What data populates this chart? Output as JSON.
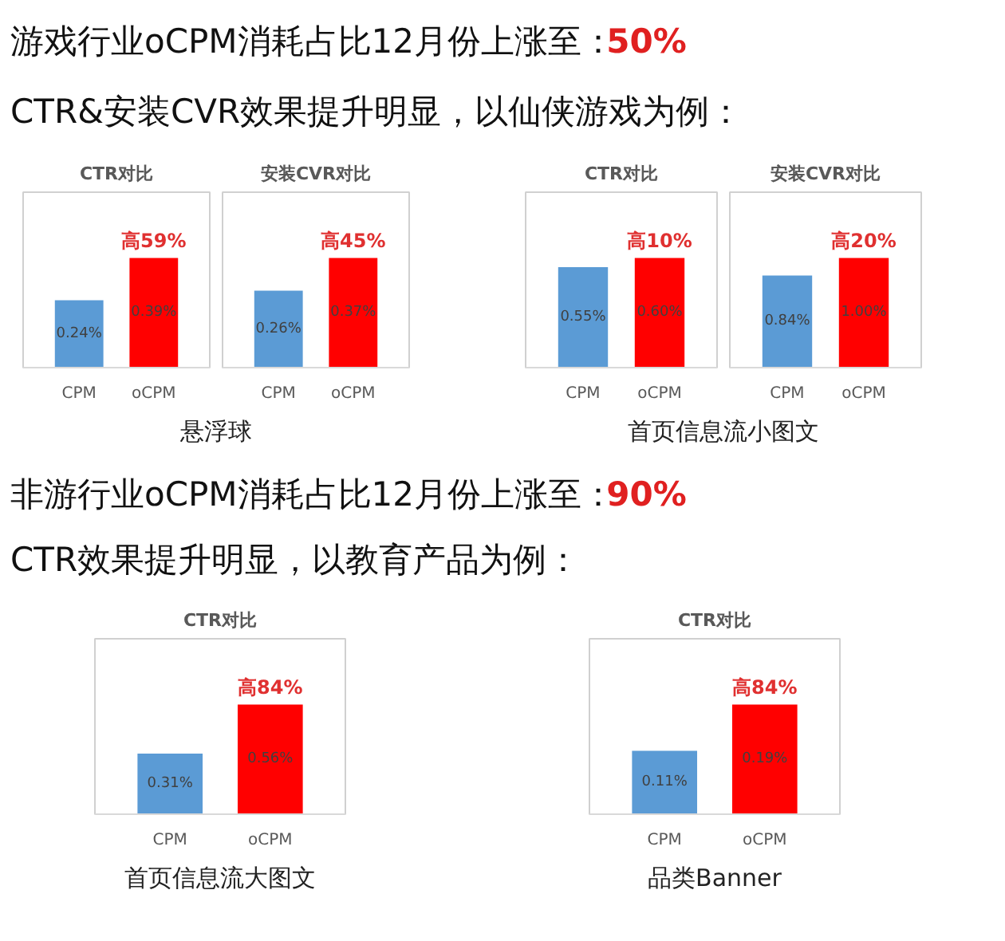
{
  "chart_data": [
    {
      "type": "other",
      "title": "游戏行业oCPM消耗占比12月份上涨至：",
      "annotations": [
        "50%"
      ],
      "subtitle": "CTR&安装CVR效果提升明显，以仙侠游戏为例："
    },
    {
      "type": "bar",
      "title": "CTR对比",
      "categories": [
        "CPM",
        "oCPM"
      ],
      "values": [
        0.24,
        0.39
      ],
      "value_labels": [
        "0.24%",
        "0.39%"
      ],
      "colors": [
        "#5b9bd5",
        "#ff0000"
      ],
      "annotations": [
        "高59%"
      ]
    },
    {
      "type": "bar",
      "title": "安装CVR对比",
      "categories": [
        "CPM",
        "oCPM"
      ],
      "values": [
        0.26,
        0.37
      ],
      "value_labels": [
        "0.26%",
        "0.37%"
      ],
      "colors": [
        "#5b9bd5",
        "#ff0000"
      ],
      "annotations": [
        "高45%"
      ]
    },
    {
      "type": "bar",
      "title": "CTR对比",
      "categories": [
        "CPM",
        "oCPM"
      ],
      "values": [
        0.55,
        0.6
      ],
      "value_labels": [
        "0.55%",
        "0.60%"
      ],
      "colors": [
        "#5b9bd5",
        "#ff0000"
      ],
      "annotations": [
        "高10%"
      ]
    },
    {
      "type": "bar",
      "title": "安装CVR对比",
      "categories": [
        "CPM",
        "oCPM"
      ],
      "values": [
        0.84,
        1.0
      ],
      "value_labels": [
        "0.84%",
        "1.00%"
      ],
      "colors": [
        "#5b9bd5",
        "#ff0000"
      ],
      "annotations": [
        "高20%"
      ]
    },
    {
      "type": "other",
      "title": "悬浮球"
    },
    {
      "type": "other",
      "title": "首页信息流小图文"
    },
    {
      "type": "other",
      "title": "非游行业oCPM消耗占比12月份上涨至：",
      "annotations": [
        "90%"
      ],
      "subtitle": "CTR效果提升明显，以教育产品为例："
    },
    {
      "type": "bar",
      "title": "CTR对比",
      "categories": [
        "CPM",
        "oCPM"
      ],
      "values": [
        0.31,
        0.56
      ],
      "value_labels": [
        "0.31%",
        "0.56%"
      ],
      "colors": [
        "#5b9bd5",
        "#ff0000"
      ],
      "annotations": [
        "高84%"
      ]
    },
    {
      "type": "bar",
      "title": "CTR对比",
      "categories": [
        "CPM",
        "oCPM"
      ],
      "values": [
        0.11,
        0.19
      ],
      "value_labels": [
        "0.11%",
        "0.19%"
      ],
      "colors": [
        "#5b9bd5",
        "#ff0000"
      ],
      "annotations": [
        "高84%"
      ]
    },
    {
      "type": "other",
      "title": "首页信息流大图文"
    },
    {
      "type": "other",
      "title": "品类Banner"
    }
  ]
}
